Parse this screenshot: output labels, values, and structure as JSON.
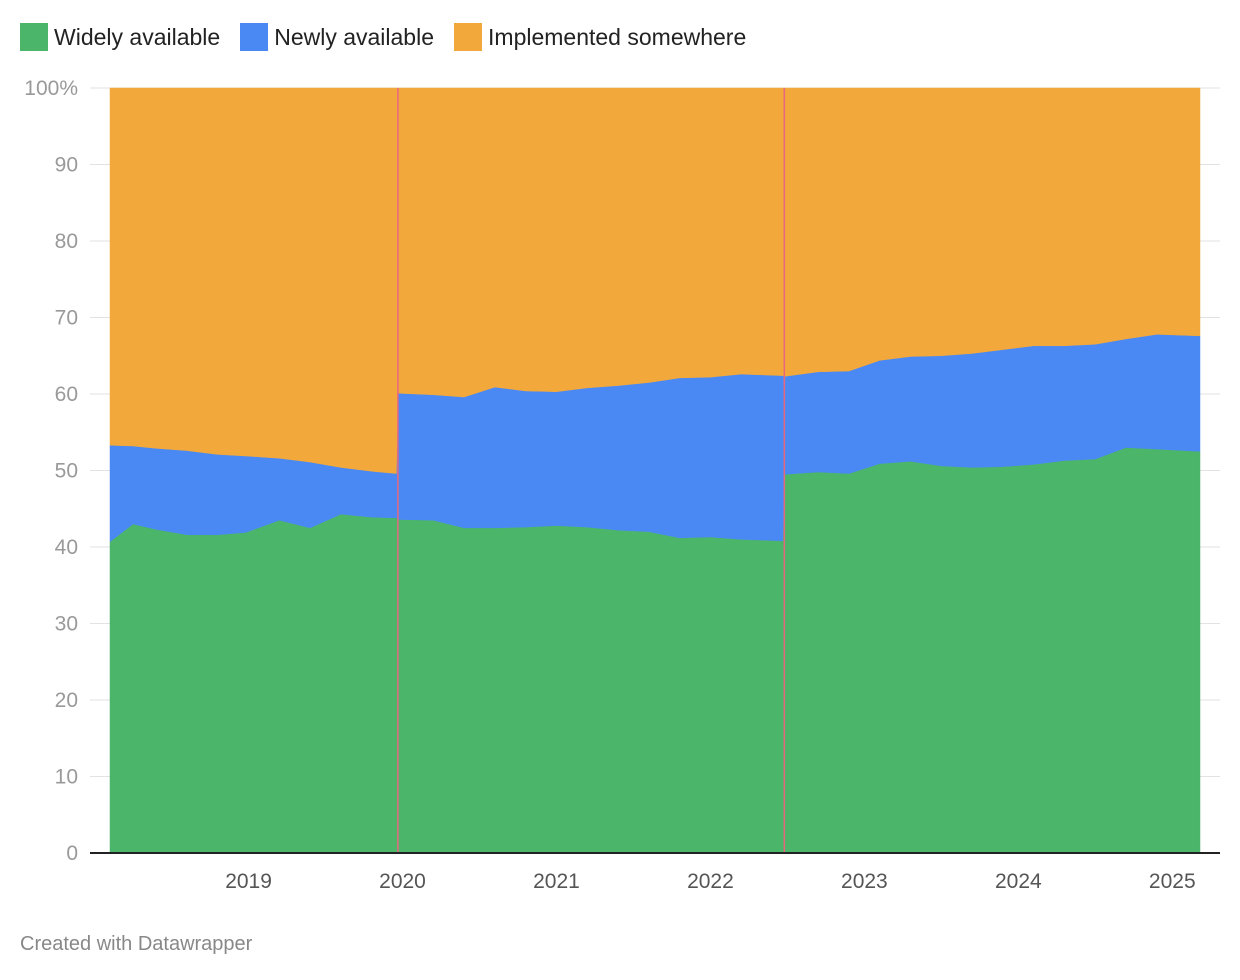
{
  "colors": {
    "widely": "#4bb56a",
    "newly": "#4a89f3",
    "implemented": "#f2a83b",
    "marker": "#e8677f",
    "grid": "#e2e2e2",
    "axis": "#222222"
  },
  "footer": "Created with Datawrapper",
  "chart_data": {
    "type": "area",
    "stacked": true,
    "title": "",
    "xlabel": "",
    "ylabel": "",
    "ylim": [
      0,
      100
    ],
    "xlim": [
      2018.1,
      2025.18
    ],
    "grid": true,
    "legend_position": "top-left",
    "y_ticks": [
      {
        "value": 100,
        "label": "100%"
      },
      {
        "value": 90,
        "label": "90"
      },
      {
        "value": 80,
        "label": "80"
      },
      {
        "value": 70,
        "label": "70"
      },
      {
        "value": 60,
        "label": "60"
      },
      {
        "value": 50,
        "label": "50"
      },
      {
        "value": 40,
        "label": "40"
      },
      {
        "value": 30,
        "label": "30"
      },
      {
        "value": 20,
        "label": "20"
      },
      {
        "value": 10,
        "label": "10"
      },
      {
        "value": 0,
        "label": "0"
      }
    ],
    "x_ticks": [
      {
        "value": 2019,
        "label": "2019"
      },
      {
        "value": 2020,
        "label": "2020"
      },
      {
        "value": 2021,
        "label": "2021"
      },
      {
        "value": 2022,
        "label": "2022"
      },
      {
        "value": 2023,
        "label": "2023"
      },
      {
        "value": 2024,
        "label": "2024"
      },
      {
        "value": 2025,
        "label": "2025"
      }
    ],
    "markers": [
      2019.97,
      2022.48
    ],
    "x": [
      2018.1,
      2018.25,
      2018.4,
      2018.6,
      2018.8,
      2018.98,
      2019.2,
      2019.4,
      2019.6,
      2019.8,
      2019.96,
      2019.97,
      2020.2,
      2020.4,
      2020.6,
      2020.8,
      2021.0,
      2021.2,
      2021.4,
      2021.6,
      2021.8,
      2022.0,
      2022.2,
      2022.47,
      2022.48,
      2022.7,
      2022.9,
      2023.1,
      2023.3,
      2023.5,
      2023.7,
      2023.9,
      2024.1,
      2024.3,
      2024.5,
      2024.7,
      2024.9,
      2025.18
    ],
    "series": [
      {
        "name": "Widely available",
        "color": "#4bb56a",
        "values": [
          40.7,
          43.0,
          42.3,
          41.6,
          41.6,
          41.9,
          43.5,
          42.5,
          44.3,
          43.9,
          43.8,
          43.6,
          43.5,
          42.5,
          42.5,
          42.6,
          42.8,
          42.6,
          42.2,
          42.0,
          41.2,
          41.3,
          41.0,
          40.8,
          49.5,
          49.8,
          49.6,
          50.9,
          51.2,
          50.6,
          50.4,
          50.5,
          50.8,
          51.3,
          51.5,
          53.0,
          52.8,
          52.5
        ]
      },
      {
        "name": "Newly available",
        "color": "#4a89f3",
        "values": [
          12.6,
          10.2,
          10.6,
          11.0,
          10.5,
          10.0,
          8.1,
          8.6,
          6.1,
          6.0,
          5.8,
          16.5,
          16.4,
          17.1,
          18.4,
          17.8,
          17.5,
          18.2,
          18.9,
          19.5,
          20.9,
          20.9,
          21.6,
          21.6,
          12.8,
          13.1,
          13.4,
          13.5,
          13.7,
          14.4,
          14.9,
          15.3,
          15.5,
          15.0,
          15.0,
          14.2,
          15.0,
          15.1
        ]
      },
      {
        "name": "Implemented somewhere",
        "color": "#f2a83b",
        "values": [
          46.7,
          46.8,
          47.1,
          47.4,
          47.9,
          48.1,
          48.4,
          48.9,
          49.6,
          50.1,
          50.4,
          39.9,
          40.1,
          40.4,
          39.1,
          39.6,
          39.7,
          39.2,
          38.9,
          38.5,
          37.9,
          37.8,
          37.4,
          37.6,
          37.7,
          37.1,
          37.0,
          35.6,
          35.1,
          35.0,
          34.7,
          34.2,
          33.7,
          33.7,
          33.5,
          32.8,
          32.2,
          32.4
        ]
      }
    ]
  }
}
